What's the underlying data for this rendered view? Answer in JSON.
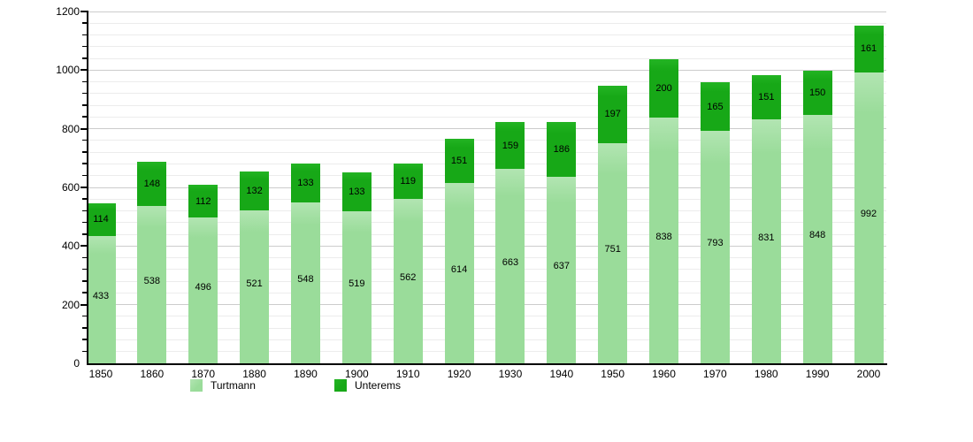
{
  "chart_data": {
    "type": "bar",
    "stacked": true,
    "title": "",
    "xlabel": "",
    "ylabel": "",
    "categories": [
      "1850",
      "1860",
      "1870",
      "1880",
      "1890",
      "1900",
      "1910",
      "1920",
      "1930",
      "1940",
      "1950",
      "1960",
      "1970",
      "1980",
      "1990",
      "2000"
    ],
    "series": [
      {
        "name": "Turtmann",
        "color": "#9adc9a",
        "color_top": "#b2e5b2",
        "values": [
          433,
          538,
          496,
          521,
          548,
          519,
          562,
          614,
          663,
          637,
          751,
          838,
          793,
          831,
          848,
          992
        ]
      },
      {
        "name": "Unterems",
        "color": "#17a817",
        "color_top": "#23b423",
        "values": [
          114,
          148,
          112,
          132,
          133,
          133,
          119,
          151,
          159,
          186,
          197,
          200,
          165,
          151,
          150,
          161
        ]
      }
    ],
    "ylim": [
      0,
      1200
    ],
    "ytick_step": 200,
    "yminor_step": 40,
    "ytick_labels": [
      "0",
      "200",
      "400",
      "600",
      "800",
      "1000",
      "1200"
    ],
    "grid": true,
    "legend_position": "bottom",
    "axis_color": "#000000",
    "major_grid_color": "#cccccc",
    "minor_grid_color": "#ececec"
  }
}
